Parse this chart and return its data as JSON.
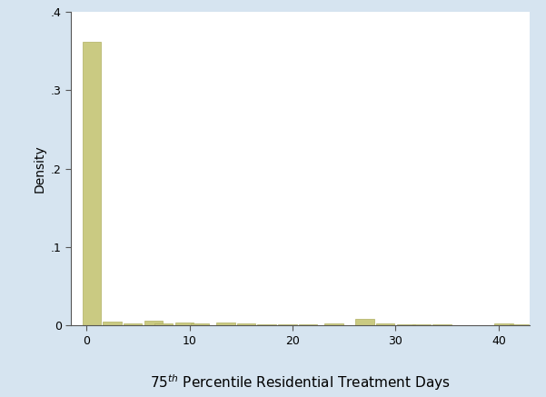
{
  "ylabel": "Density",
  "xlabel_part1": "75",
  "xlabel_sup": "th",
  "xlabel_part2": " Percentile Residential Treatment Days",
  "background_color": "#d6e4f0",
  "plot_background_color": "#ffffff",
  "bar_color": "#caca82",
  "bar_edgecolor": "#b0b060",
  "ylim": [
    0,
    0.4
  ],
  "xlim": [
    -1.5,
    43
  ],
  "yticks": [
    0,
    0.1,
    0.2,
    0.3,
    0.4
  ],
  "ytick_labels": [
    "0",
    ".1",
    ".2",
    ".3",
    ".4"
  ],
  "xticks": [
    0,
    10,
    20,
    30,
    40
  ],
  "bar_edges": [
    0.5,
    2.5,
    4.5,
    6.5,
    7.5,
    9.5,
    11.0,
    13.5,
    15.5,
    17.5,
    19.5,
    21.5,
    24.0,
    27.0,
    29.0,
    31.0,
    32.5,
    34.5,
    40.5,
    42.0
  ],
  "bar_heights": [
    0.362,
    0.0045,
    0.003,
    0.006,
    0.003,
    0.004,
    0.003,
    0.004,
    0.003,
    0.002,
    0.002,
    0.002,
    0.003,
    0.008,
    0.003,
    0.002,
    0.001,
    0.001,
    0.003,
    0.002
  ],
  "bar_width": 1.8,
  "spine_color": "#555555",
  "tick_labelsize": 9,
  "ylabel_fontsize": 10,
  "xlabel_fontsize": 11
}
